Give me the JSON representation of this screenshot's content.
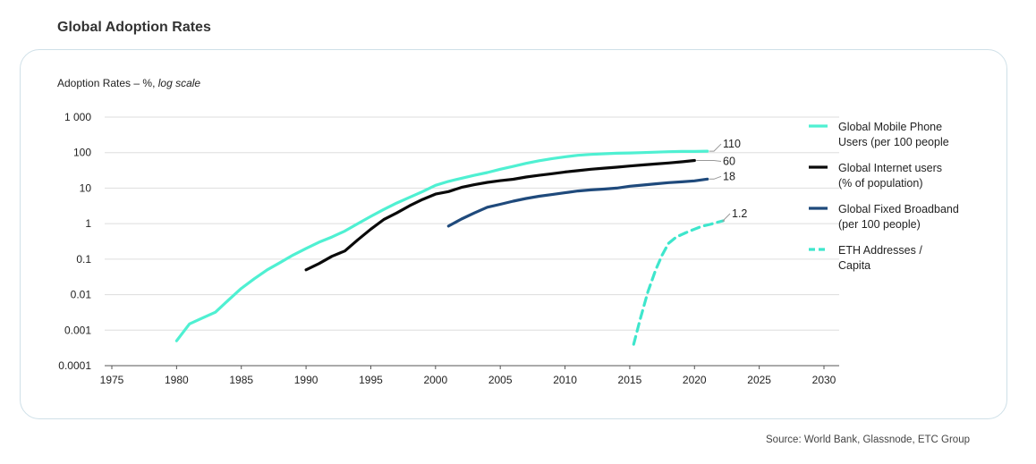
{
  "page_title": "Global Adoption Rates",
  "source": "Source: World Bank, Glassnode, ETC Group",
  "colors": {
    "mobile": "#4ff0d2",
    "internet": "#0a0a0a",
    "broadband": "#1f4a7c",
    "eth": "#3ee6cc",
    "grid": "#dddddd",
    "card_border": "#cfe0e8"
  },
  "chart_data": {
    "type": "line",
    "ylabel_main": "Adoption Rates – %, ",
    "ylabel_italic": "log scale",
    "yscale": "log",
    "ylim": [
      0.0001,
      1000
    ],
    "xlim": [
      1975,
      2030
    ],
    "x_ticks": [
      "1975",
      "1980",
      "1985",
      "1990",
      "1995",
      "2000",
      "2005",
      "2010",
      "2015",
      "2020",
      "2025",
      "2030"
    ],
    "y_ticks": [
      {
        "value": 1000,
        "label": "1 000"
      },
      {
        "value": 100,
        "label": "100"
      },
      {
        "value": 10,
        "label": "10"
      },
      {
        "value": 1,
        "label": "1"
      },
      {
        "value": 0.1,
        "label": "0.1"
      },
      {
        "value": 0.01,
        "label": "0.01"
      },
      {
        "value": 0.001,
        "label": "0.001"
      },
      {
        "value": 0.0001,
        "label": "0.0001"
      }
    ],
    "legend_position": "right",
    "series": [
      {
        "key": "mobile",
        "name_line1": "Global Mobile Phone",
        "name_line2": "Users (per 100 people",
        "dashed": false,
        "end_label": "110",
        "points": [
          [
            1980,
            0.0005
          ],
          [
            1981,
            0.0015
          ],
          [
            1982,
            0.0022
          ],
          [
            1983,
            0.0032
          ],
          [
            1984,
            0.007
          ],
          [
            1985,
            0.015
          ],
          [
            1986,
            0.028
          ],
          [
            1987,
            0.05
          ],
          [
            1988,
            0.08
          ],
          [
            1989,
            0.13
          ],
          [
            1990,
            0.2
          ],
          [
            1991,
            0.3
          ],
          [
            1992,
            0.42
          ],
          [
            1993,
            0.62
          ],
          [
            1994,
            1.0
          ],
          [
            1995,
            1.6
          ],
          [
            1996,
            2.5
          ],
          [
            1997,
            3.8
          ],
          [
            1998,
            5.5
          ],
          [
            1999,
            8.0
          ],
          [
            2000,
            12
          ],
          [
            2001,
            15.5
          ],
          [
            2002,
            19
          ],
          [
            2003,
            23
          ],
          [
            2004,
            27.5
          ],
          [
            2005,
            34
          ],
          [
            2006,
            41
          ],
          [
            2007,
            50
          ],
          [
            2008,
            59
          ],
          [
            2009,
            68
          ],
          [
            2010,
            76
          ],
          [
            2011,
            84
          ],
          [
            2012,
            89
          ],
          [
            2013,
            93
          ],
          [
            2014,
            96
          ],
          [
            2015,
            98
          ],
          [
            2016,
            100
          ],
          [
            2017,
            103
          ],
          [
            2018,
            106
          ],
          [
            2019,
            108
          ],
          [
            2020,
            108
          ],
          [
            2021,
            110
          ]
        ]
      },
      {
        "key": "internet",
        "name_line1": "Global Internet users",
        "name_line2": "(% of population)",
        "dashed": false,
        "end_label": "60",
        "points": [
          [
            1990,
            0.05
          ],
          [
            1991,
            0.075
          ],
          [
            1992,
            0.12
          ],
          [
            1993,
            0.17
          ],
          [
            1994,
            0.35
          ],
          [
            1995,
            0.7
          ],
          [
            1996,
            1.3
          ],
          [
            1997,
            2.0
          ],
          [
            1998,
            3.2
          ],
          [
            1999,
            4.8
          ],
          [
            2000,
            6.8
          ],
          [
            2001,
            8.0
          ],
          [
            2002,
            10.5
          ],
          [
            2003,
            12.5
          ],
          [
            2004,
            14.5
          ],
          [
            2005,
            16.2
          ],
          [
            2006,
            17.8
          ],
          [
            2007,
            20.5
          ],
          [
            2008,
            23
          ],
          [
            2009,
            25.5
          ],
          [
            2010,
            28.5
          ],
          [
            2011,
            31
          ],
          [
            2012,
            34
          ],
          [
            2013,
            36.5
          ],
          [
            2014,
            39
          ],
          [
            2015,
            42
          ],
          [
            2016,
            45
          ],
          [
            2017,
            48
          ],
          [
            2018,
            51
          ],
          [
            2019,
            55
          ],
          [
            2020,
            60
          ]
        ]
      },
      {
        "key": "broadband",
        "name_line1": "Global Fixed Broadband",
        "name_line2": "(per 100 people)",
        "dashed": false,
        "end_label": "18",
        "points": [
          [
            2001,
            0.85
          ],
          [
            2002,
            1.35
          ],
          [
            2003,
            2.0
          ],
          [
            2004,
            2.9
          ],
          [
            2005,
            3.5
          ],
          [
            2006,
            4.3
          ],
          [
            2007,
            5.1
          ],
          [
            2008,
            5.9
          ],
          [
            2009,
            6.6
          ],
          [
            2010,
            7.4
          ],
          [
            2011,
            8.3
          ],
          [
            2012,
            8.9
          ],
          [
            2013,
            9.4
          ],
          [
            2014,
            10
          ],
          [
            2015,
            11.3
          ],
          [
            2016,
            12.2
          ],
          [
            2017,
            13.2
          ],
          [
            2018,
            14.3
          ],
          [
            2019,
            15
          ],
          [
            2020,
            16
          ],
          [
            2021,
            18
          ]
        ]
      },
      {
        "key": "eth",
        "name_line1": "ETH Addresses /",
        "name_line2": "Capita",
        "dashed": true,
        "end_label": "1.2",
        "points": [
          [
            2015.3,
            0.0004
          ],
          [
            2015.8,
            0.002
          ],
          [
            2016.4,
            0.012
          ],
          [
            2017.0,
            0.05
          ],
          [
            2017.5,
            0.13
          ],
          [
            2018.0,
            0.28
          ],
          [
            2018.6,
            0.42
          ],
          [
            2019.3,
            0.55
          ],
          [
            2020.0,
            0.7
          ],
          [
            2020.6,
            0.85
          ],
          [
            2021.2,
            0.95
          ],
          [
            2021.8,
            1.1
          ],
          [
            2022.2,
            1.2
          ]
        ]
      }
    ]
  }
}
